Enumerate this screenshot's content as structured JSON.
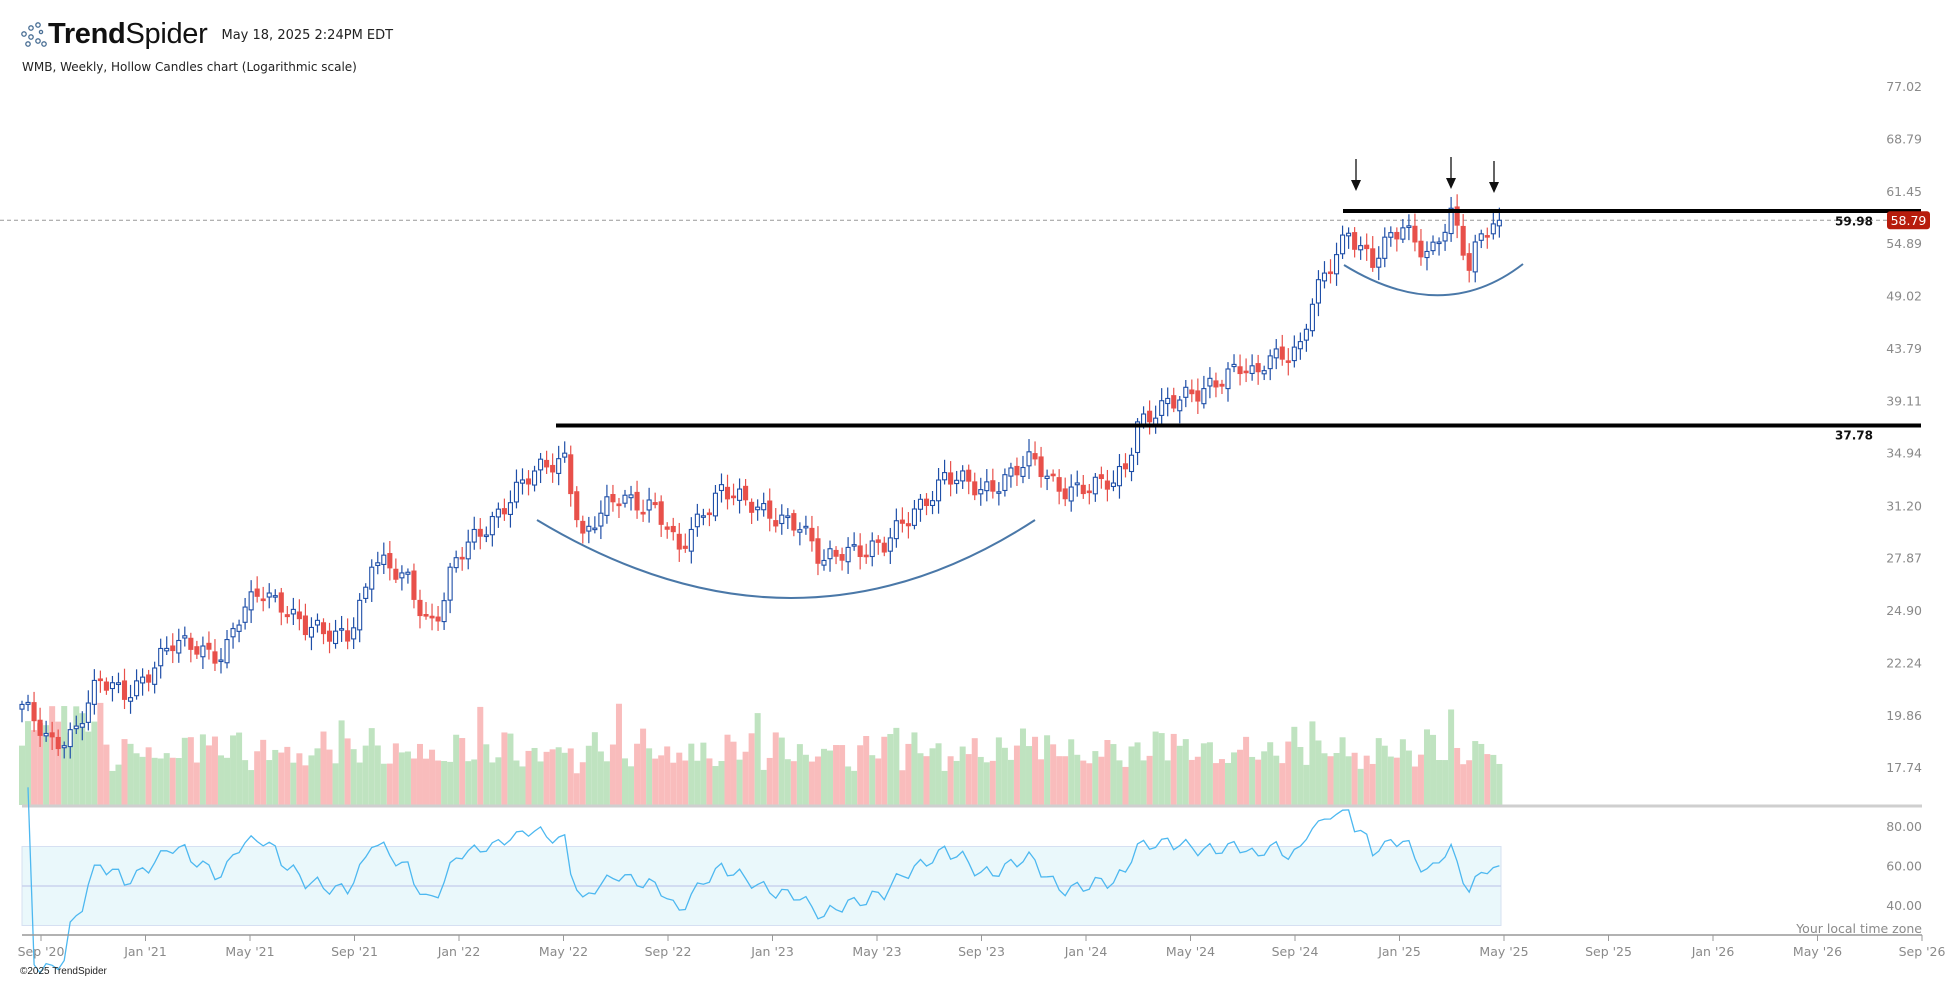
{
  "header": {
    "brand_bold": "Trend",
    "brand_light": "Spider",
    "timestamp": "May 18, 2025 2:24PM EDT",
    "subtitle": "WMB, Weekly, Hollow Candles chart (Logarithmic scale)"
  },
  "footer": {
    "copyright": "©2025 TrendSpider",
    "timezone_note": "Your local time zone"
  },
  "colors": {
    "up": "#1f4fa8",
    "down": "#e8504a",
    "vol_up": "#bfe3c0",
    "vol_down": "#f9bcbc",
    "rsi": "#4db8f0",
    "rsi_band": "#eaf8fb",
    "badge": "#b71c0c",
    "arc": "#4a78a8"
  },
  "chart_data": {
    "type": "candlestick",
    "symbol": "WMB",
    "interval": "Weekly",
    "scale": "log",
    "price_axis_labels": [
      "77.02",
      "68.79",
      "61.45",
      "54.89",
      "49.02",
      "43.79",
      "39.11",
      "34.94",
      "31.20",
      "27.87",
      "24.90",
      "22.24",
      "19.86",
      "17.74"
    ],
    "date_axis_labels": [
      "Sep '20",
      "Jan '21",
      "May '21",
      "Sep '21",
      "Jan '22",
      "May '22",
      "Sep '22",
      "Jan '23",
      "May '23",
      "Sep '23",
      "Jan '24",
      "May '24",
      "Sep '24",
      "Jan '25",
      "May '25",
      "Sep '25",
      "Jan '26",
      "May '26",
      "Sep '26"
    ],
    "rsi_axis_labels": [
      "80.00",
      "60.00",
      "40.00"
    ],
    "rsi_levels": {
      "upper": 70,
      "middle": 50,
      "lower": 30
    },
    "weeks": 246,
    "weekly_close_anchors": [
      [
        0,
        20.5
      ],
      [
        4.6,
        19.1
      ],
      [
        8.7,
        19.6
      ],
      [
        12.8,
        21.6
      ],
      [
        17,
        21.3
      ],
      [
        21,
        22.2
      ],
      [
        25,
        23.4
      ],
      [
        29,
        23.6
      ],
      [
        33.5,
        23.0
      ],
      [
        35.5,
        24.5
      ],
      [
        39.6,
        26.5
      ],
      [
        42.8,
        26.0
      ],
      [
        47,
        24.3
      ],
      [
        50,
        24.0
      ],
      [
        54,
        24.3
      ],
      [
        57,
        26.5
      ],
      [
        58,
        28.2
      ],
      [
        61,
        27.5
      ],
      [
        64,
        27.2
      ],
      [
        67.5,
        24.7
      ],
      [
        69.5,
        25.4
      ],
      [
        71.6,
        27.8
      ],
      [
        74.7,
        29.5
      ],
      [
        77.8,
        31.0
      ],
      [
        81,
        32.3
      ],
      [
        84,
        33.5
      ],
      [
        87,
        34.7
      ],
      [
        90,
        35.5
      ],
      [
        93,
        29.5
      ],
      [
        97,
        31.5
      ],
      [
        99.5,
        32.6
      ],
      [
        104.6,
        31.8
      ],
      [
        106.6,
        30.4
      ],
      [
        108.8,
        28.5
      ],
      [
        113,
        31.7
      ],
      [
        116,
        33.0
      ],
      [
        120,
        31.7
      ],
      [
        126,
        31.2
      ],
      [
        129,
        30.4
      ],
      [
        132.5,
        27.9
      ],
      [
        136.6,
        29.2
      ],
      [
        142.8,
        28.8
      ],
      [
        148,
        31.7
      ],
      [
        153,
        33.6
      ],
      [
        159,
        33.0
      ],
      [
        167.5,
        34.8
      ],
      [
        171.6,
        33.3
      ],
      [
        177.8,
        32.9
      ],
      [
        181,
        33.3
      ],
      [
        183,
        34.7
      ],
      [
        185,
        38.3
      ],
      [
        191,
        39.4
      ],
      [
        197,
        41.6
      ],
      [
        202.6,
        42.5
      ],
      [
        204.6,
        41.6
      ],
      [
        206.6,
        44.2
      ],
      [
        212,
        44.5
      ],
      [
        214,
        49.0
      ],
      [
        216,
        51.7
      ],
      [
        218,
        54.9
      ],
      [
        220,
        58.0
      ],
      [
        224,
        53.5
      ],
      [
        228,
        57.0
      ],
      [
        229,
        58.0
      ],
      [
        233.5,
        55.0
      ],
      [
        237,
        59.0
      ],
      [
        240,
        52.8
      ],
      [
        241.8,
        57.0
      ],
      [
        243.4,
        59.0
      ],
      [
        245,
        58.79
      ]
    ],
    "last_price": "58.79",
    "annotations": {
      "resistance_upper": "59.98",
      "resistance_lower": "37.78"
    }
  }
}
